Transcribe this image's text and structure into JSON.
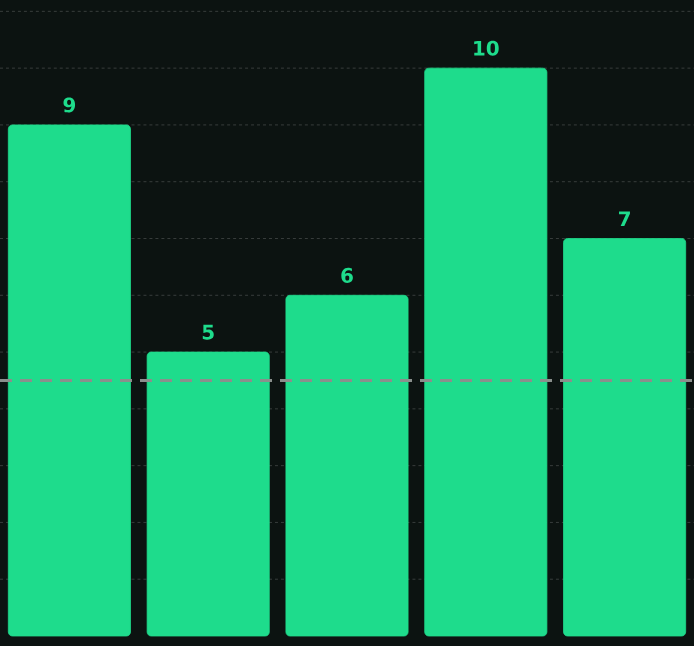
{
  "chart_data": {
    "type": "bar",
    "categories": [
      null,
      null,
      null,
      null,
      null
    ],
    "values": [
      9,
      5,
      6,
      10,
      7
    ],
    "color": "#1edc8c",
    "yticks": [
      {
        "value": 1,
        "label": null
      },
      {
        "value": 2,
        "label": null
      },
      {
        "value": 3,
        "label": null
      },
      {
        "value": 4,
        "label": null
      },
      {
        "value": 5,
        "label": null
      },
      {
        "value": 6,
        "label": null
      },
      {
        "value": 7,
        "label": null
      },
      {
        "value": 8,
        "label": null
      },
      {
        "value": 9,
        "label": null
      },
      {
        "value": 10,
        "label": null
      },
      {
        "value": 11,
        "label": null
      }
    ],
    "grid": "y",
    "data_labels": true,
    "ref_lines": [
      {
        "axis": "y",
        "value": 4.5,
        "label": null,
        "color": "#8a8f8c",
        "line_style": "dashed"
      }
    ]
  }
}
